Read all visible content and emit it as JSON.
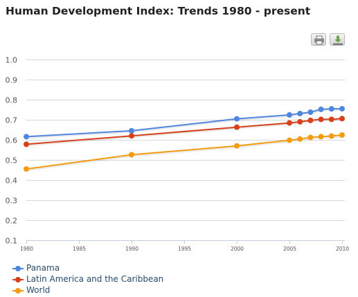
{
  "title": "Human Development Index: Trends 1980 - present",
  "toolbar": {
    "print_icon": "printer-icon",
    "download_icon": "download-icon"
  },
  "colors": {
    "panama": "#4f86e0",
    "latam": "#d6401a",
    "world": "#f39c12",
    "grid": "#d8d8d8",
    "axis_text": "#555555",
    "legend_text": "#274b6d"
  },
  "chart_data": {
    "type": "line",
    "x_ticks": [
      "1980",
      "1985",
      "1990",
      "1995",
      "2000",
      "2005",
      "2010"
    ],
    "y_ticks": [
      "0.1",
      "0.2",
      "0.3",
      "0.4",
      "0.5",
      "0.6",
      "0.7",
      "0.8",
      "0.9",
      "1.0"
    ],
    "xlim": [
      1980,
      2010
    ],
    "ylim": [
      0.1,
      1.0
    ],
    "grid": true,
    "legend_position": "bottom-left",
    "series": [
      {
        "name": "Panama",
        "color": "#4f86e0",
        "points": [
          [
            1980,
            0.616
          ],
          [
            1990,
            0.645
          ],
          [
            2000,
            0.705
          ],
          [
            2005,
            0.724
          ],
          [
            2006,
            0.731
          ],
          [
            2007,
            0.738
          ],
          [
            2008,
            0.752
          ],
          [
            2009,
            0.754
          ],
          [
            2010,
            0.755
          ]
        ]
      },
      {
        "name": "Latin America and the Caribbean",
        "color": "#d6401a",
        "points": [
          [
            1980,
            0.578
          ],
          [
            1990,
            0.62
          ],
          [
            2000,
            0.663
          ],
          [
            2005,
            0.684
          ],
          [
            2006,
            0.69
          ],
          [
            2007,
            0.697
          ],
          [
            2008,
            0.702
          ],
          [
            2009,
            0.702
          ],
          [
            2010,
            0.706
          ]
        ]
      },
      {
        "name": "World",
        "color": "#f39c12",
        "points": [
          [
            1980,
            0.455
          ],
          [
            1990,
            0.526
          ],
          [
            2000,
            0.57
          ],
          [
            2005,
            0.598
          ],
          [
            2006,
            0.604
          ],
          [
            2007,
            0.612
          ],
          [
            2008,
            0.616
          ],
          [
            2009,
            0.619
          ],
          [
            2010,
            0.624
          ]
        ]
      }
    ]
  }
}
